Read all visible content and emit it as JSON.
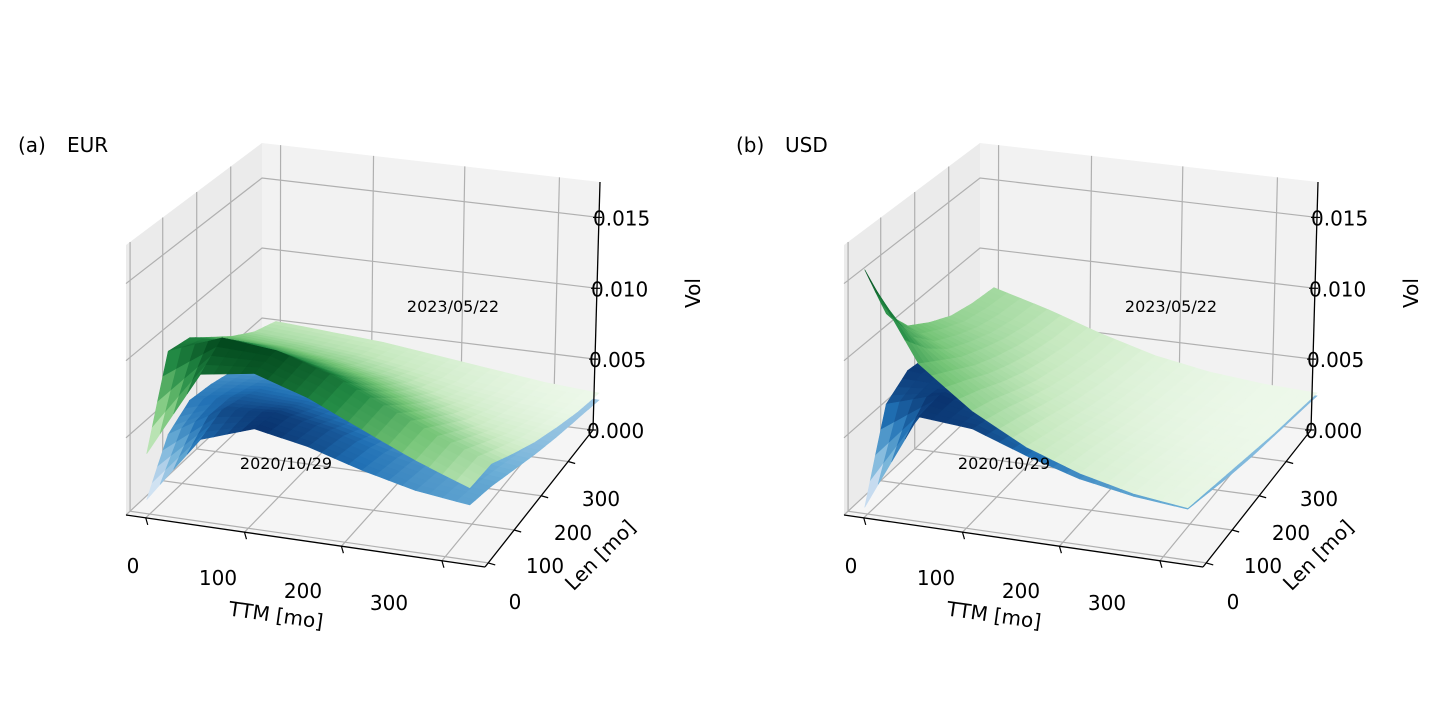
{
  "chart_data": [
    {
      "type": "surface3d",
      "panel_label": "(a)",
      "title": "EUR",
      "xlabel": "TTM [mo]",
      "ylabel": "Len [mo]",
      "zlabel": "Vol",
      "x_ticks": [
        "0",
        "100",
        "200",
        "300"
      ],
      "y_ticks": [
        "0",
        "100",
        "200",
        "300"
      ],
      "z_ticks": [
        "0.000",
        "0.005",
        "0.010",
        "0.015"
      ],
      "xlim": [
        0,
        360
      ],
      "ylim": [
        0,
        360
      ],
      "zlim": [
        0,
        0.0175
      ],
      "grid": true,
      "series": [
        {
          "name": "2023/05/22",
          "colormap": "Greens",
          "ttm_length_grid": [
            0,
            60,
            120,
            180,
            240,
            300,
            360
          ],
          "z_matrix": [
            [
              0.004,
              0.0095,
              0.0092,
              0.008,
              0.0068,
              0.0058,
              0.0052
            ],
            [
              0.0098,
              0.011,
              0.0095,
              0.008,
              0.0066,
              0.0056,
              0.005
            ],
            [
              0.0105,
              0.0108,
              0.009,
              0.0075,
              0.0062,
              0.0053,
              0.0048
            ],
            [
              0.0095,
              0.0098,
              0.0082,
              0.0068,
              0.0056,
              0.0048,
              0.0044
            ],
            [
              0.008,
              0.0083,
              0.007,
              0.0058,
              0.0048,
              0.0042,
              0.004
            ],
            [
              0.0065,
              0.0068,
              0.0058,
              0.0048,
              0.0042,
              0.0038,
              0.0036
            ],
            [
              0.0052,
              0.0055,
              0.0048,
              0.0042,
              0.0038,
              0.0035,
              0.0034
            ]
          ]
        },
        {
          "name": "2020/10/29",
          "colormap": "Blues",
          "ttm_length_grid": [
            0,
            60,
            120,
            180,
            240,
            300,
            360
          ],
          "z_matrix": [
            [
              0.001,
              0.004,
              0.005,
              0.0048,
              0.0044,
              0.004,
              0.0036
            ],
            [
              0.0055,
              0.0062,
              0.0058,
              0.0052,
              0.0046,
              0.004,
              0.0036
            ],
            [
              0.0068,
              0.0066,
              0.0058,
              0.005,
              0.0044,
              0.0038,
              0.0034
            ],
            [
              0.0062,
              0.006,
              0.0052,
              0.0045,
              0.004,
              0.0036,
              0.0032
            ],
            [
              0.0052,
              0.005,
              0.0045,
              0.004,
              0.0036,
              0.0033,
              0.0031
            ],
            [
              0.0044,
              0.0043,
              0.004,
              0.0036,
              0.0033,
              0.0031,
              0.003
            ],
            [
              0.004,
              0.0039,
              0.0036,
              0.0033,
              0.0031,
              0.003,
              0.0029
            ]
          ]
        }
      ]
    },
    {
      "type": "surface3d",
      "panel_label": "(b)",
      "title": "USD",
      "xlabel": "TTM [mo]",
      "ylabel": "Len [mo]",
      "zlabel": "Vol",
      "x_ticks": [
        "0",
        "100",
        "200",
        "300"
      ],
      "y_ticks": [
        "0",
        "100",
        "200",
        "300"
      ],
      "z_ticks": [
        "0.000",
        "0.005",
        "0.010",
        "0.015"
      ],
      "xlim": [
        0,
        360
      ],
      "ylim": [
        0,
        360
      ],
      "zlim": [
        0,
        0.0175
      ],
      "grid": true,
      "series": [
        {
          "name": "2023/05/22",
          "colormap": "Greens",
          "ttm_length_grid": [
            0,
            60,
            120,
            180,
            240,
            300,
            360
          ],
          "z_matrix": [
            [
              0.016,
              0.012,
              0.01,
              0.009,
              0.0082,
              0.0078,
              0.0076
            ],
            [
              0.0105,
              0.0095,
              0.0085,
              0.0078,
              0.0072,
              0.0068,
              0.0066
            ],
            [
              0.008,
              0.0075,
              0.0068,
              0.0062,
              0.0058,
              0.0055,
              0.0054
            ],
            [
              0.0062,
              0.0058,
              0.0054,
              0.005,
              0.0047,
              0.0045,
              0.0044
            ],
            [
              0.005,
              0.0048,
              0.0045,
              0.0042,
              0.004,
              0.0039,
              0.0038
            ],
            [
              0.0042,
              0.0041,
              0.0039,
              0.0037,
              0.0036,
              0.0035,
              0.0035
            ],
            [
              0.0038,
              0.0037,
              0.0036,
              0.0035,
              0.0034,
              0.0034,
              0.0034
            ]
          ]
        },
        {
          "name": "2020/10/29",
          "colormap": "Blues",
          "ttm_length_grid": [
            0,
            60,
            120,
            180,
            240,
            300,
            360
          ],
          "z_matrix": [
            [
              0.0005,
              0.006,
              0.007,
              0.0068,
              0.0064,
              0.0062,
              0.006
            ],
            [
              0.007,
              0.0072,
              0.0066,
              0.006,
              0.0056,
              0.0052,
              0.005
            ],
            [
              0.0068,
              0.0064,
              0.0056,
              0.005,
              0.0046,
              0.0043,
              0.0042
            ],
            [
              0.0056,
              0.0052,
              0.0046,
              0.0042,
              0.0039,
              0.0037,
              0.0036
            ],
            [
              0.0046,
              0.0043,
              0.0039,
              0.0036,
              0.0034,
              0.0033,
              0.0033
            ],
            [
              0.004,
              0.0038,
              0.0035,
              0.0033,
              0.0032,
              0.0032,
              0.0032
            ],
            [
              0.0037,
              0.0035,
              0.0033,
              0.0032,
              0.0032,
              0.0032,
              0.0032
            ]
          ]
        }
      ]
    }
  ]
}
